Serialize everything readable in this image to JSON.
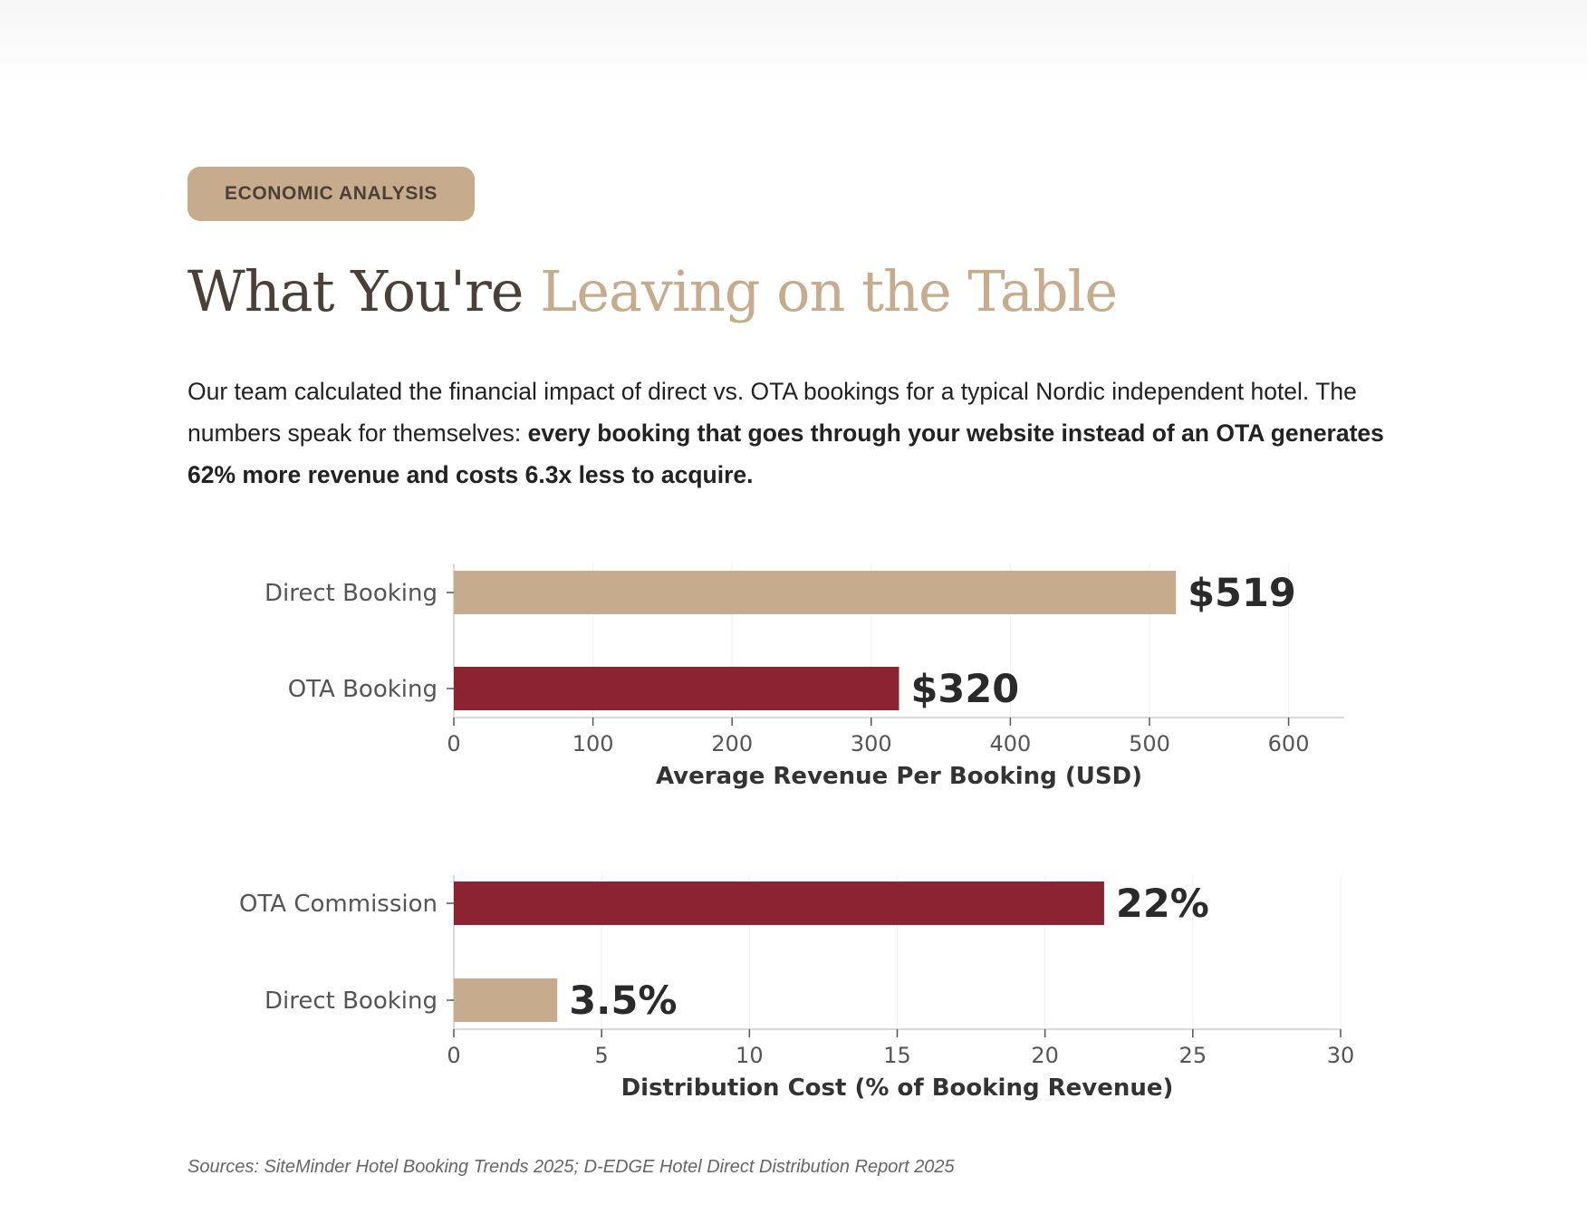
{
  "badge": "ECONOMIC ANALYSIS",
  "title": {
    "main": "What You're",
    "accent": "Leaving on the Table"
  },
  "intro": {
    "text": "Our team calculated the financial impact of direct vs. OTA bookings for a typical Nordic independent hotel. The numbers speak for themselves: ",
    "emphasis": "every booking that goes through your website instead of an OTA generates 62% more revenue and costs 6.3x less to acquire."
  },
  "colors": {
    "direct": "#c6ab8d",
    "ota": "#8c2333",
    "accent": "#c6ab8d",
    "text": "#4a4038"
  },
  "chart_data": [
    {
      "type": "bar",
      "orientation": "horizontal",
      "categories": [
        "Direct Booking",
        "OTA Booking"
      ],
      "values": [
        519,
        320
      ],
      "value_labels": [
        "$519",
        "$320"
      ],
      "bar_colors": [
        "#c6ab8d",
        "#8c2333"
      ],
      "xlabel": "Average Revenue Per Booking (USD)",
      "ylabel": "",
      "xlim": [
        0,
        640
      ],
      "xticks": [
        0,
        100,
        200,
        300,
        400,
        500,
        600
      ],
      "grid": true
    },
    {
      "type": "bar",
      "orientation": "horizontal",
      "categories": [
        "OTA Commission",
        "Direct Booking"
      ],
      "values": [
        22,
        3.5
      ],
      "value_labels": [
        "22%",
        "3.5%"
      ],
      "bar_colors": [
        "#8c2333",
        "#c6ab8d"
      ],
      "xlabel": "Distribution Cost (% of Booking Revenue)",
      "ylabel": "",
      "xlim": [
        0,
        30
      ],
      "xticks": [
        0,
        5,
        10,
        15,
        20,
        25,
        30
      ],
      "grid": true
    }
  ],
  "sources": "Sources: SiteMinder Hotel Booking Trends 2025; D-EDGE Hotel Direct Distribution Report 2025"
}
